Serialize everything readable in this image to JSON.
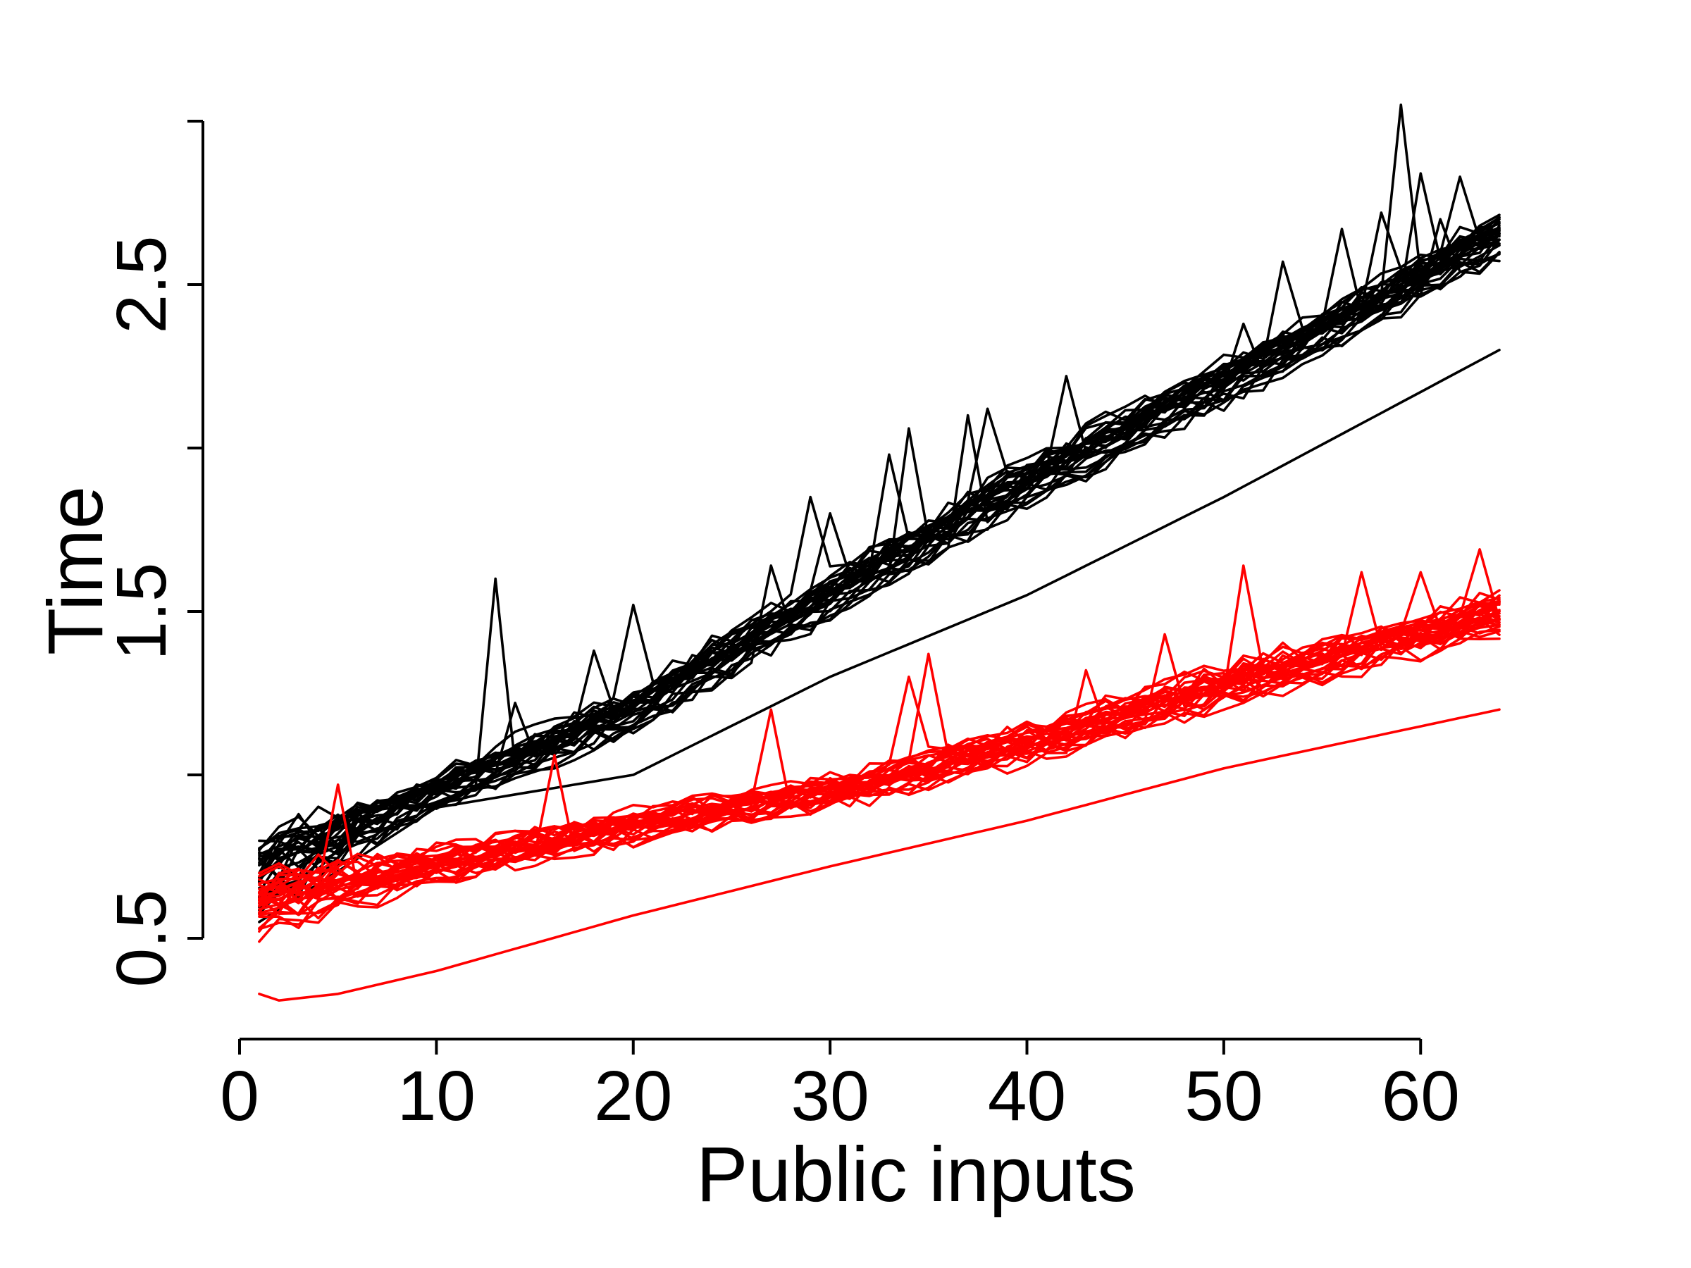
{
  "chart_data": {
    "type": "line",
    "title": "",
    "xlabel": "Public inputs",
    "ylabel": "Time",
    "xlim": [
      0,
      64
    ],
    "ylim": [
      0.5,
      3.0
    ],
    "x_ticks": [
      0,
      10,
      20,
      30,
      40,
      50,
      60
    ],
    "y_ticks": [
      0.5,
      1.0,
      1.5,
      2.0,
      2.5,
      3.0
    ],
    "y_tick_labels": [
      "0.5",
      "",
      "1.5",
      "",
      "2.5",
      ""
    ],
    "grid": false,
    "legend": "none",
    "colors": {
      "black_group": "#000000",
      "red_group": "#ff0000"
    },
    "x": [
      1,
      2,
      3,
      4,
      5,
      6,
      7,
      8,
      9,
      10,
      11,
      12,
      13,
      14,
      15,
      16,
      17,
      18,
      19,
      20,
      21,
      22,
      23,
      24,
      25,
      26,
      27,
      28,
      29,
      30,
      31,
      32,
      33,
      34,
      35,
      36,
      37,
      38,
      39,
      40,
      41,
      42,
      43,
      44,
      45,
      46,
      47,
      48,
      49,
      50,
      51,
      52,
      53,
      54,
      55,
      56,
      57,
      58,
      59,
      60,
      61,
      62,
      63,
      64
    ],
    "groups": [
      {
        "color": "#000000",
        "trend": {
          "x": [
            1,
            10,
            20,
            30,
            40,
            50,
            64
          ],
          "center": [
            0.7,
            0.95,
            1.2,
            1.55,
            1.9,
            2.2,
            2.65
          ],
          "spread": [
            0.16,
            0.08,
            0.1,
            0.1,
            0.1,
            0.1,
            0.1
          ]
        },
        "lower_line": {
          "x": [
            1,
            10,
            20,
            30,
            40,
            50,
            64
          ],
          "values": [
            0.55,
            0.9,
            1.0,
            1.3,
            1.55,
            1.85,
            2.3
          ]
        },
        "spikes": [
          {
            "x": 3,
            "value": 0.88
          },
          {
            "x": 13,
            "value": 1.6
          },
          {
            "x": 14,
            "value": 1.22
          },
          {
            "x": 18,
            "value": 1.38
          },
          {
            "x": 20,
            "value": 1.52
          },
          {
            "x": 27,
            "value": 1.64
          },
          {
            "x": 29,
            "value": 1.85
          },
          {
            "x": 30,
            "value": 1.8
          },
          {
            "x": 33,
            "value": 1.98
          },
          {
            "x": 34,
            "value": 2.06
          },
          {
            "x": 37,
            "value": 2.1
          },
          {
            "x": 38,
            "value": 2.12
          },
          {
            "x": 42,
            "value": 2.22
          },
          {
            "x": 51,
            "value": 2.38
          },
          {
            "x": 53,
            "value": 2.57
          },
          {
            "x": 56,
            "value": 2.67
          },
          {
            "x": 58,
            "value": 2.72
          },
          {
            "x": 59,
            "value": 3.05
          },
          {
            "x": 60,
            "value": 2.84
          },
          {
            "x": 61,
            "value": 2.7
          },
          {
            "x": 62,
            "value": 2.83
          }
        ]
      },
      {
        "color": "#ff0000",
        "trend": {
          "x": [
            1,
            10,
            20,
            30,
            40,
            50,
            64
          ],
          "center": [
            0.62,
            0.73,
            0.85,
            0.95,
            1.1,
            1.28,
            1.5
          ],
          "spread": [
            0.16,
            0.08,
            0.08,
            0.08,
            0.09,
            0.1,
            0.1
          ]
        },
        "lower_line": {
          "x": [
            1,
            2,
            5,
            10,
            20,
            30,
            40,
            50,
            64
          ],
          "values": [
            0.33,
            0.31,
            0.33,
            0.4,
            0.57,
            0.72,
            0.86,
            1.02,
            1.2
          ]
        },
        "spikes": [
          {
            "x": 5,
            "value": 0.97
          },
          {
            "x": 16,
            "value": 1.06
          },
          {
            "x": 27,
            "value": 1.2
          },
          {
            "x": 34,
            "value": 1.3
          },
          {
            "x": 35,
            "value": 1.37
          },
          {
            "x": 43,
            "value": 1.32
          },
          {
            "x": 47,
            "value": 1.43
          },
          {
            "x": 51,
            "value": 1.64
          },
          {
            "x": 57,
            "value": 1.62
          },
          {
            "x": 60,
            "value": 1.62
          },
          {
            "x": 63,
            "value": 1.69
          }
        ]
      }
    ]
  }
}
